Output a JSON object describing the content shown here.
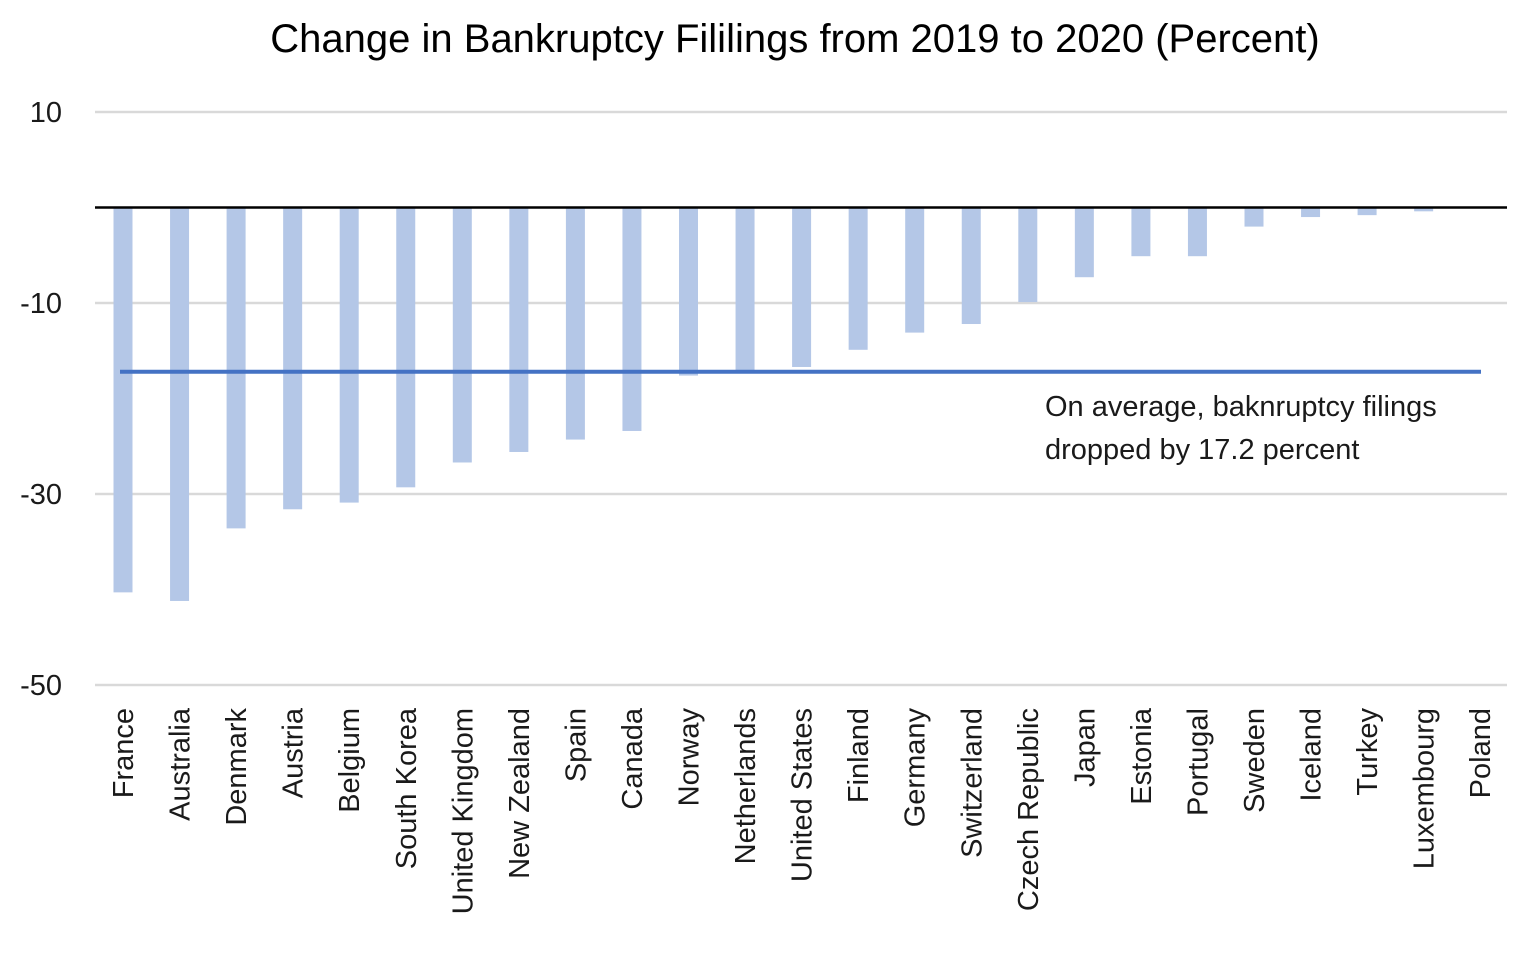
{
  "chart_data": {
    "type": "bar",
    "title": "Change in Bankruptcy Fililings from 2019 to 2020 (Percent)",
    "xlabel": "",
    "ylabel": "",
    "ylim": [
      -50,
      10
    ],
    "yticks": [
      10,
      -10,
      -30,
      -50
    ],
    "grid": true,
    "categories": [
      "France",
      "Australia",
      "Denmark",
      "Austria",
      "Belgium",
      "South Korea",
      "United Kingdom",
      "New Zealand",
      "Spain",
      "Canada",
      "Norway",
      "Netherlands",
      "United States",
      "Finland",
      "Germany",
      "Switzerland",
      "Czech Republic",
      "Japan",
      "Estonia",
      "Portugal",
      "Sweden",
      "Iceland",
      "Turkey",
      "Luxembourg",
      "Poland"
    ],
    "values": [
      -40.3,
      -41.2,
      -33.6,
      -31.6,
      -30.9,
      -29.3,
      -26.7,
      -25.6,
      -24.3,
      -23.4,
      -17.6,
      -17.1,
      -16.7,
      -14.9,
      -13.1,
      -12.2,
      -9.9,
      -7.3,
      -5.1,
      -5.1,
      -2.0,
      -1.0,
      -0.8,
      -0.4,
      0.0
    ],
    "series_color": "#b4c7e7",
    "zero_line_color": "#000000",
    "grid_color": "#d9d9d9",
    "average": {
      "value": -17.2,
      "color": "#4472c4",
      "annotation_lines": [
        "On average,  baknruptcy filings",
        "dropped by 17.2 percent"
      ]
    }
  }
}
